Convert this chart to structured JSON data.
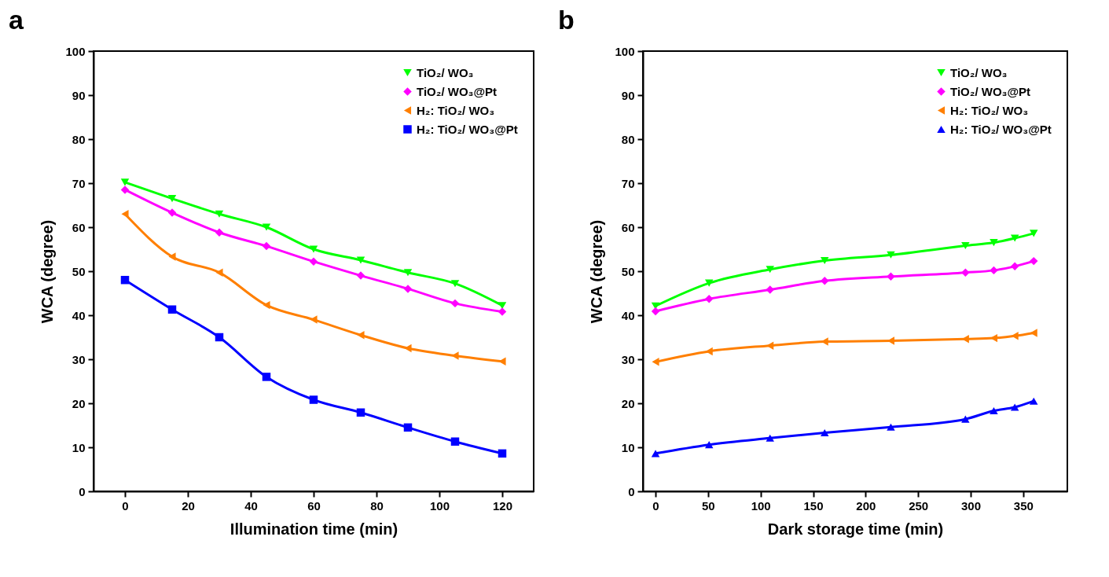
{
  "chart_data": [
    {
      "type": "line",
      "title": "a",
      "xlabel": "Illumination time (min)",
      "ylabel": "WCA (degree)",
      "xlim": [
        -10,
        130
      ],
      "xticks": [
        0,
        20,
        40,
        60,
        80,
        100,
        120
      ],
      "ylim": [
        0,
        100
      ],
      "yticks": [
        0,
        10,
        20,
        30,
        40,
        50,
        60,
        70,
        80,
        90,
        100
      ],
      "grid": false,
      "legend": "top right",
      "line_style": "solid",
      "x": [
        0,
        15,
        30,
        45,
        60,
        75,
        90,
        105,
        120
      ],
      "series": [
        {
          "name": "TiO₂/ WO₃",
          "color": "#00ff00",
          "marker": "triangle-down",
          "values": [
            70.2,
            66.5,
            63,
            60,
            55,
            52.5,
            49.7,
            47.2,
            42.2
          ]
        },
        {
          "name": "TiO₂/ WO₃@Pt",
          "color": "#ff00ff",
          "marker": "diamond",
          "values": [
            68.5,
            63.3,
            58.8,
            55.7,
            52.2,
            49,
            46,
            42.7,
            40.8
          ]
        },
        {
          "name": "H₂: TiO₂/ WO₃",
          "color": "#ff7f00",
          "marker": "triangle-left",
          "values": [
            63,
            53.3,
            49.7,
            42.3,
            39,
            35.5,
            32.5,
            30.8,
            29.5
          ]
        },
        {
          "name": "H₂: TiO₂/ WO₃@Pt",
          "color": "#0000ff",
          "marker": "square",
          "values": [
            48,
            41.3,
            35,
            26,
            20.8,
            17.9,
            14.5,
            11.3,
            8.6
          ]
        }
      ]
    },
    {
      "type": "line",
      "title": "b",
      "xlabel": "Dark storage time (min)",
      "ylabel": "WCA (degree)",
      "xlim": [
        -12,
        392
      ],
      "xticks": [
        0,
        50,
        100,
        150,
        200,
        250,
        300,
        350
      ],
      "ylim": [
        0,
        100
      ],
      "yticks": [
        0,
        10,
        20,
        30,
        40,
        50,
        60,
        70,
        80,
        90,
        100
      ],
      "grid": false,
      "legend": "top right",
      "line_style": "solid",
      "x": [
        0,
        51,
        109,
        161,
        224,
        295,
        322,
        342,
        360
      ],
      "series": [
        {
          "name": "TiO₂/ WO₃",
          "color": "#00ff00",
          "marker": "triangle-down",
          "values": [
            42.1,
            47.3,
            50.4,
            52.4,
            53.7,
            55.8,
            56.5,
            57.5,
            58.6
          ]
        },
        {
          "name": "TiO₂/ WO₃@Pt",
          "color": "#ff00ff",
          "marker": "diamond",
          "values": [
            40.9,
            43.7,
            45.8,
            47.8,
            48.8,
            49.7,
            50.2,
            51.1,
            52.3
          ]
        },
        {
          "name": "H₂: TiO₂/ WO₃",
          "color": "#ff7f00",
          "marker": "triangle-left",
          "values": [
            29.4,
            31.8,
            33.1,
            34,
            34.2,
            34.6,
            34.8,
            35.3,
            36
          ]
        },
        {
          "name": "H₂: TiO₂/ WO₃@Pt",
          "color": "#0000ff",
          "marker": "triangle-up",
          "values": [
            8.6,
            10.6,
            12.1,
            13.3,
            14.6,
            16.4,
            18.3,
            19.1,
            20.5
          ]
        }
      ]
    }
  ]
}
